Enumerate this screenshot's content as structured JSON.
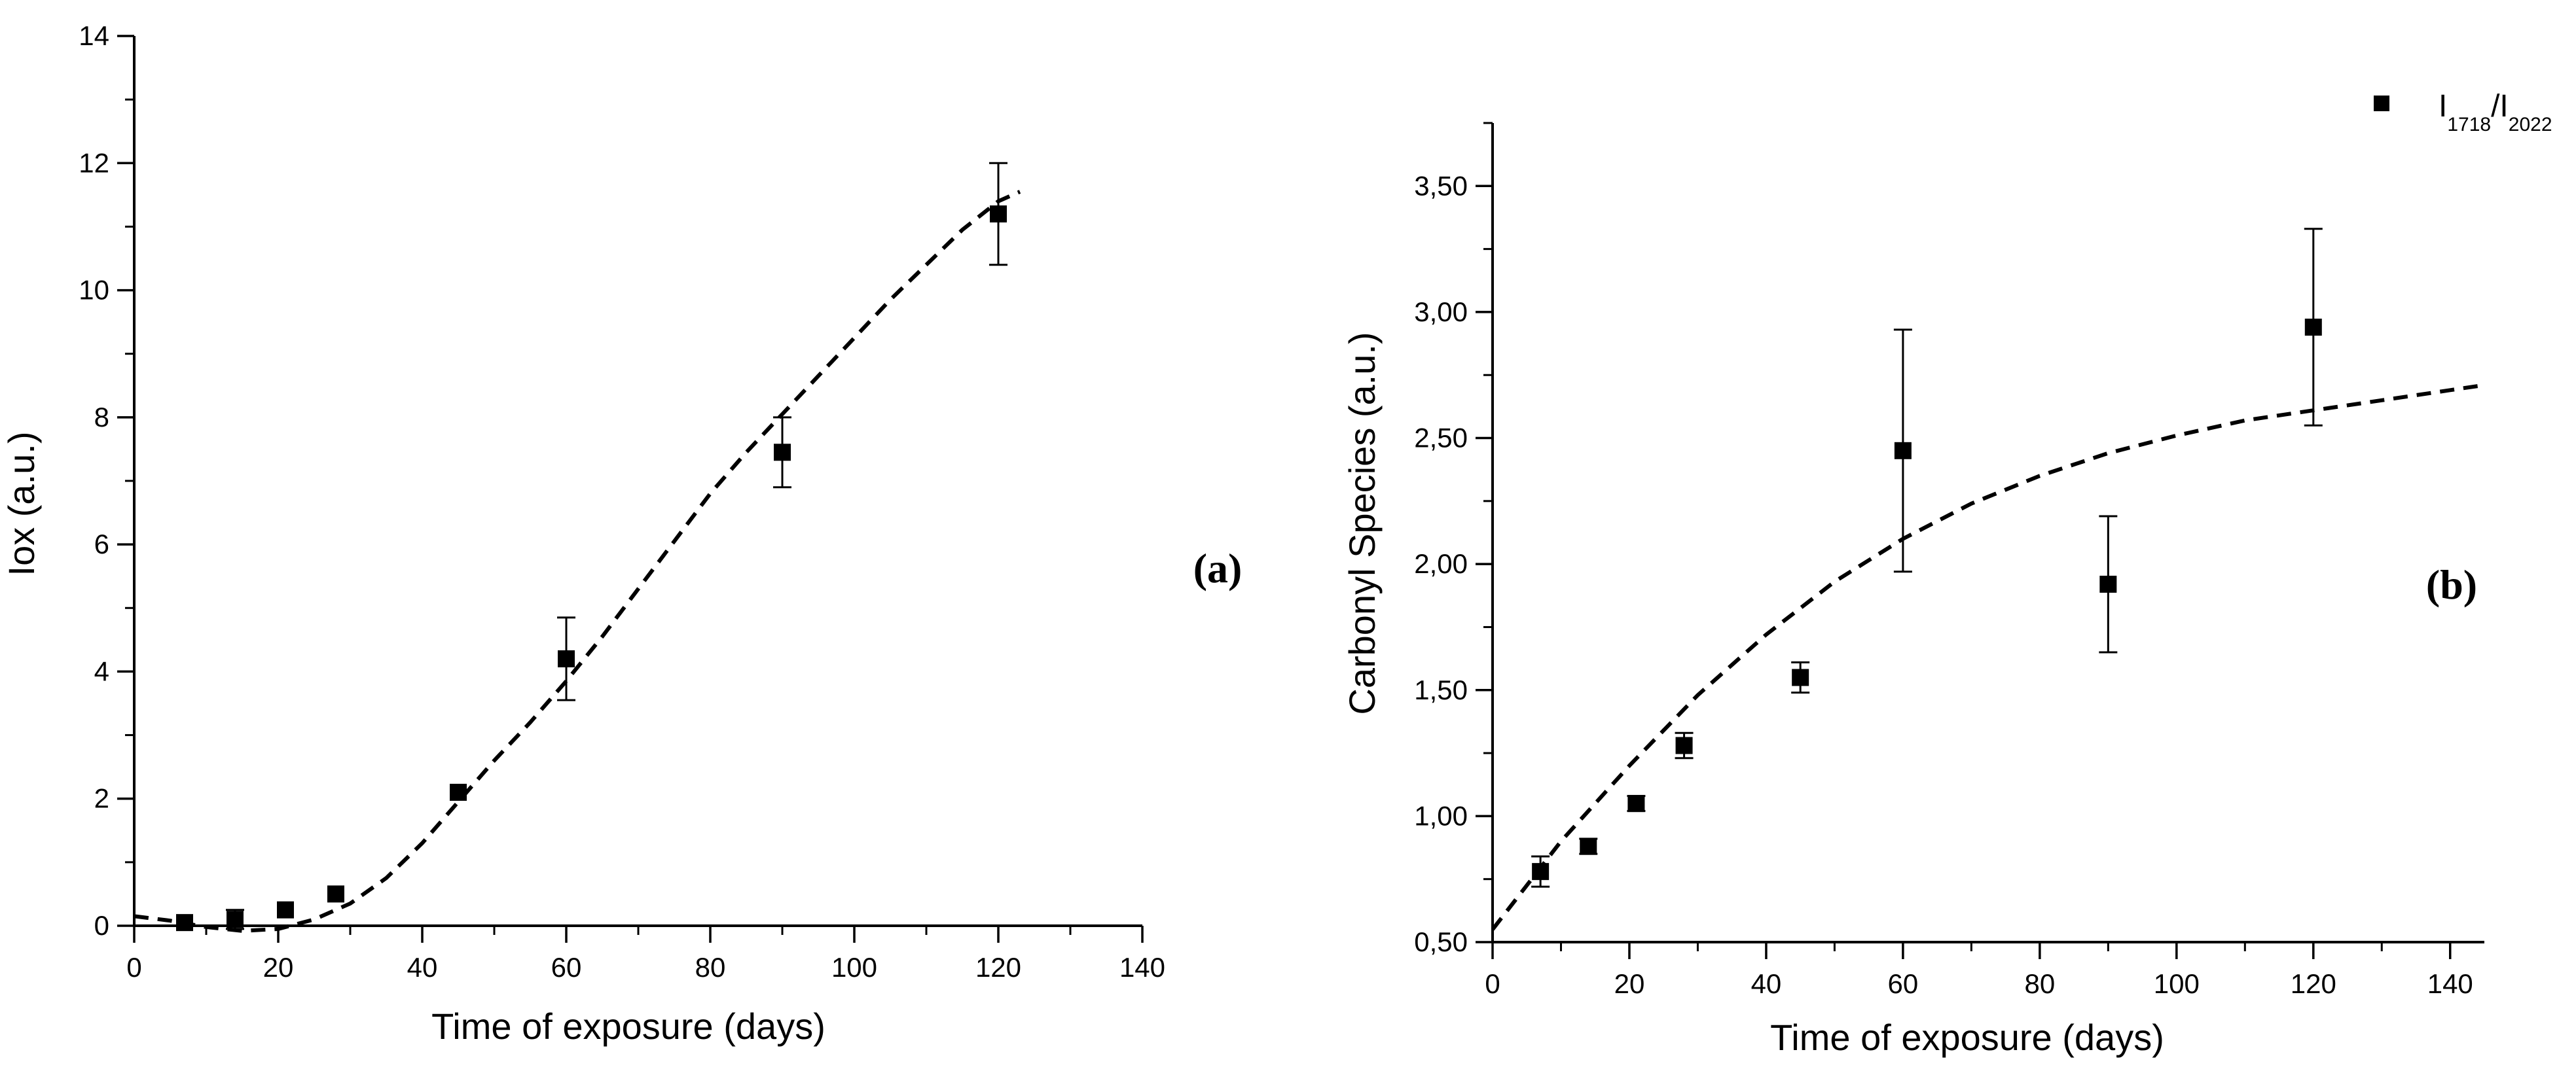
{
  "chart_data": [
    {
      "type": "scatter",
      "panel_label": "(a)",
      "xlabel": "Time of exposure (days)",
      "ylabel": "Iox (a.u.)",
      "xlim": [
        0,
        140
      ],
      "ylim": [
        0,
        14
      ],
      "x_ticks": [
        0,
        20,
        40,
        60,
        80,
        100,
        120,
        140
      ],
      "x_tick_labels": [
        "0",
        "20",
        "40",
        "60",
        "80",
        "100",
        "120",
        "140"
      ],
      "y_ticks": [
        0,
        2,
        4,
        6,
        8,
        10,
        12,
        14
      ],
      "y_tick_labels": [
        "0",
        "2",
        "4",
        "6",
        "8",
        "10",
        "12",
        "14"
      ],
      "series": [
        {
          "name": "Iox",
          "x": [
            7,
            14,
            21,
            28,
            45,
            60,
            90,
            120
          ],
          "y": [
            0.05,
            0.1,
            0.25,
            0.5,
            2.1,
            4.2,
            7.45,
            11.2
          ],
          "err": [
            0.05,
            0.15,
            0.05,
            0.05,
            0.1,
            0.65,
            0.55,
            0.8
          ]
        }
      ],
      "fit": {
        "style": "dashed",
        "x": [
          0,
          5,
          10,
          15,
          20,
          25,
          30,
          35,
          40,
          45,
          50,
          55,
          60,
          65,
          70,
          75,
          80,
          85,
          90,
          95,
          100,
          105,
          110,
          115,
          120,
          123
        ],
        "y": [
          0.15,
          0.08,
          -0.02,
          -0.08,
          -0.05,
          0.1,
          0.35,
          0.75,
          1.3,
          1.95,
          2.6,
          3.2,
          3.85,
          4.55,
          5.3,
          6.05,
          6.8,
          7.45,
          8.05,
          8.65,
          9.25,
          9.85,
          10.4,
          10.95,
          11.4,
          11.55
        ]
      }
    },
    {
      "type": "scatter",
      "panel_label": "(b)",
      "xlabel": "Time of exposure (days)",
      "ylabel": "Carbonyl Species (a.u.)",
      "xlim": [
        0,
        145
      ],
      "ylim": [
        0.5,
        3.75
      ],
      "x_ticks": [
        0,
        20,
        40,
        60,
        80,
        100,
        120,
        140
      ],
      "x_tick_labels": [
        "0",
        "20",
        "40",
        "60",
        "80",
        "100",
        "120",
        "140"
      ],
      "y_ticks": [
        0.5,
        1.0,
        1.5,
        2.0,
        2.5,
        3.0,
        3.5
      ],
      "y_tick_labels": [
        "0,50",
        "1,00",
        "1,50",
        "2,00",
        "2,50",
        "3,00",
        "3,50"
      ],
      "legend": {
        "base_1": "I",
        "sub_1": "1718",
        "separator": "/I",
        "sub_2": "2022"
      },
      "series": [
        {
          "name": "I1718/I2022",
          "x": [
            7,
            14,
            21,
            28,
            45,
            60,
            90,
            120
          ],
          "y": [
            0.78,
            0.88,
            1.05,
            1.28,
            1.55,
            2.45,
            1.92,
            2.94
          ],
          "err": [
            0.06,
            0.03,
            0.03,
            0.05,
            0.06,
            0.48,
            0.27,
            0.39
          ]
        }
      ],
      "fit": {
        "style": "dashed",
        "x": [
          0,
          10,
          20,
          30,
          40,
          50,
          60,
          70,
          80,
          90,
          100,
          110,
          120,
          130,
          140,
          145
        ],
        "y": [
          0.55,
          0.9,
          1.2,
          1.48,
          1.72,
          1.93,
          2.1,
          2.24,
          2.35,
          2.44,
          2.51,
          2.57,
          2.61,
          2.65,
          2.69,
          2.71
        ]
      }
    }
  ]
}
